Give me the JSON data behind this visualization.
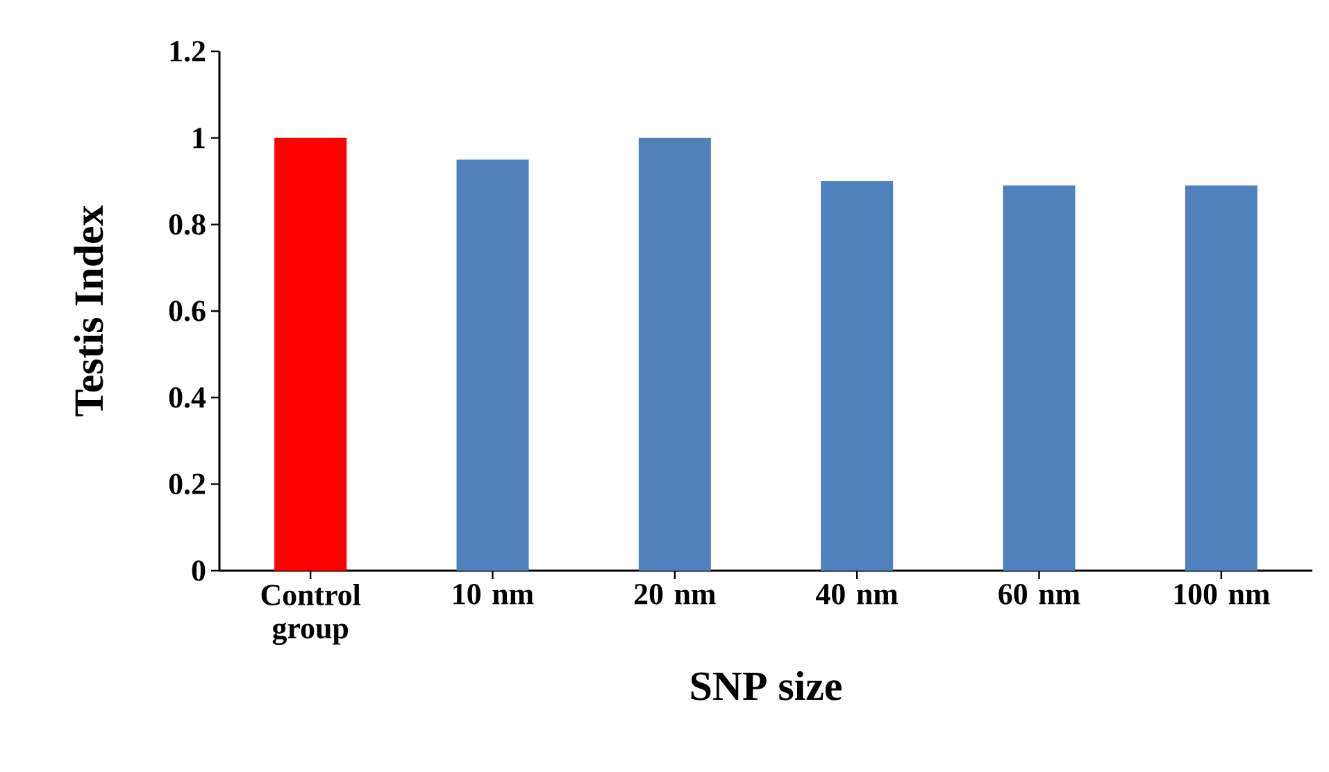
{
  "chart_data": {
    "type": "bar",
    "xlabel": "SNP size",
    "ylabel": "Testis Index",
    "categories": [
      "Control group",
      "10 nm",
      "20 nm",
      "40 nm",
      "60 nm",
      "100 nm"
    ],
    "values": [
      1.0,
      0.95,
      1.0,
      0.9,
      0.89,
      0.89
    ],
    "colors": [
      "#ff0000",
      "#4f81bd",
      "#4f81bd",
      "#4f81bd",
      "#4f81bd",
      "#4f81bd"
    ],
    "ylim": [
      0,
      1.2
    ],
    "yticks": [
      0,
      0.2,
      0.4,
      0.6,
      0.8,
      1,
      1.2
    ],
    "grid": false
  }
}
